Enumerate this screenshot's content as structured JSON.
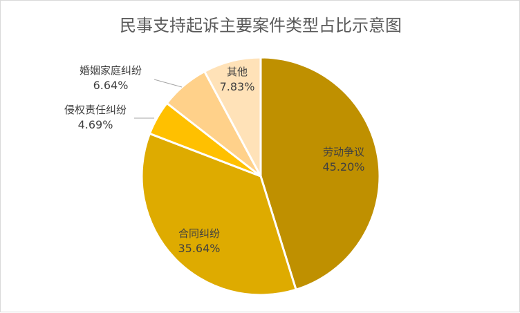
{
  "chart_data": {
    "type": "pie",
    "title": "民事支持起诉主要案件类型占比示意图",
    "start_angle_deg": 0,
    "direction": "clockwise",
    "slices": [
      {
        "label": "劳动争议",
        "value": 45.2,
        "display": "45.20%",
        "color": "#bf9000"
      },
      {
        "label": "合同纠纷",
        "value": 35.64,
        "display": "35.64%",
        "color": "#deab00"
      },
      {
        "label": "侵权责任纠纷",
        "value": 4.69,
        "display": "4.69%",
        "color": "#ffc000"
      },
      {
        "label": "婚姻家庭纠纷",
        "value": 6.64,
        "display": "6.64%",
        "color": "#ffd18a"
      },
      {
        "label": "其他",
        "value": 7.83,
        "display": "7.83%",
        "color": "#ffe2b8"
      }
    ],
    "legend": "none",
    "data_labels": "category name and percentage"
  }
}
